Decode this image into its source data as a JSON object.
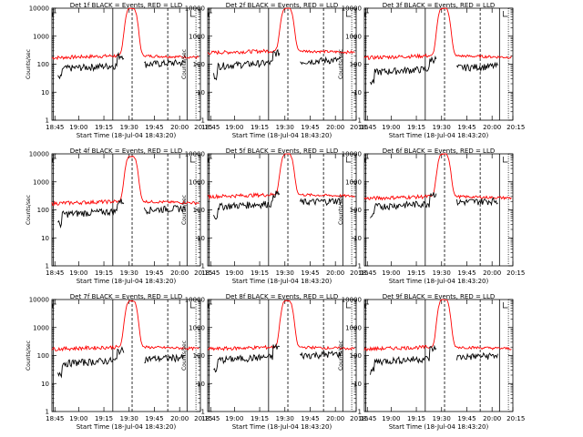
{
  "chart_data": [
    {
      "type": "line",
      "title": "Det 1f BLACK = Events, RED = LLD",
      "xlabel": "Start Time (18-Jul-04 18:43:20)",
      "ylabel": "Counts/sec",
      "yscale": "log",
      "ylim": [
        1,
        10000
      ],
      "xticks": [
        "18:45",
        "19:00",
        "19:15",
        "19:30",
        "19:45",
        "20:00",
        "20:15"
      ],
      "yticks": [
        "1",
        "10",
        "100",
        "1000",
        "10000"
      ],
      "peak": 10000,
      "red_base": 200,
      "black_base": 80,
      "series": [
        {
          "name": "BLACK = Events",
          "color": "#000000"
        },
        {
          "name": "RED = LLD",
          "color": "#ff0000"
        }
      ]
    },
    {
      "type": "line",
      "title": "Det 2f BLACK = Events, RED = LLD",
      "xlabel": "Start Time (18-Jul-04 18:43:20)",
      "ylabel": "Counts/sec",
      "yscale": "log",
      "ylim": [
        1,
        10000
      ],
      "xticks": [
        "18:45",
        "19:00",
        "19:15",
        "19:30",
        "19:45",
        "20:00",
        "20:15"
      ],
      "yticks": [
        "1",
        "10",
        "100",
        "1000",
        "10000"
      ],
      "peak": 10000,
      "red_base": 300,
      "black_base": 100,
      "series": [
        {
          "name": "BLACK = Events",
          "color": "#000000"
        },
        {
          "name": "RED = LLD",
          "color": "#ff0000"
        }
      ]
    },
    {
      "type": "line",
      "title": "Det 3f BLACK = Events, RED = LLD",
      "xlabel": "Start Time (18-Jul-04 18:43:20)",
      "ylabel": "Counts/sec",
      "yscale": "log",
      "ylim": [
        1,
        10000
      ],
      "xticks": [
        "18:45",
        "19:00",
        "19:15",
        "19:30",
        "19:45",
        "20:00",
        "20:15"
      ],
      "yticks": [
        "1",
        "10",
        "100",
        "1000",
        "10000"
      ],
      "peak": 10000,
      "red_base": 200,
      "black_base": 60,
      "series": [
        {
          "name": "BLACK = Events",
          "color": "#000000"
        },
        {
          "name": "RED = LLD",
          "color": "#ff0000"
        }
      ]
    },
    {
      "type": "line",
      "title": "Det 4f BLACK = Events, RED = LLD",
      "xlabel": "Start Time (18-Jul-04 18:43:20)",
      "ylabel": "Counts/sec",
      "yscale": "log",
      "ylim": [
        1,
        10000
      ],
      "xticks": [
        "18:45",
        "19:00",
        "19:15",
        "19:30",
        "19:45",
        "20:00",
        "20:15"
      ],
      "yticks": [
        "1",
        "10",
        "100",
        "1000",
        "10000"
      ],
      "peak": 8000,
      "red_base": 200,
      "black_base": 80,
      "series": [
        {
          "name": "BLACK = Events",
          "color": "#000000"
        },
        {
          "name": "RED = LLD",
          "color": "#ff0000"
        }
      ]
    },
    {
      "type": "line",
      "title": "Det 5f BLACK = Events, RED = LLD",
      "xlabel": "Start Time (18-Jul-04 18:43:20)",
      "ylabel": "Counts/sec",
      "yscale": "log",
      "ylim": [
        1,
        10000
      ],
      "xticks": [
        "18:45",
        "19:00",
        "19:15",
        "19:30",
        "19:45",
        "20:00",
        "20:15"
      ],
      "yticks": [
        "1",
        "10",
        "100",
        "1000",
        "10000"
      ],
      "peak": 10000,
      "red_base": 350,
      "black_base": 150,
      "series": [
        {
          "name": "BLACK = Events",
          "color": "#000000"
        },
        {
          "name": "RED = LLD",
          "color": "#ff0000"
        }
      ]
    },
    {
      "type": "line",
      "title": "Det 6f BLACK = Events, RED = LLD",
      "xlabel": "Start Time (18-Jul-04 18:43:20)",
      "ylabel": "Counts/sec",
      "yscale": "log",
      "ylim": [
        1,
        10000
      ],
      "xticks": [
        "18:45",
        "19:00",
        "19:15",
        "19:30",
        "19:45",
        "20:00",
        "20:15"
      ],
      "yticks": [
        "1",
        "10",
        "100",
        "1000",
        "10000"
      ],
      "peak": 10000,
      "red_base": 300,
      "black_base": 150,
      "series": [
        {
          "name": "BLACK = Events",
          "color": "#000000"
        },
        {
          "name": "RED = LLD",
          "color": "#ff0000"
        }
      ]
    },
    {
      "type": "line",
      "title": "Det 7f BLACK = Events, RED = LLD",
      "xlabel": "Start Time (18-Jul-04 18:43:20)",
      "ylabel": "Counts/sec",
      "yscale": "log",
      "ylim": [
        1,
        10000
      ],
      "xticks": [
        "18:45",
        "19:00",
        "19:15",
        "19:30",
        "19:45",
        "20:00",
        "20:15"
      ],
      "yticks": [
        "1",
        "10",
        "100",
        "1000",
        "10000"
      ],
      "peak": 9000,
      "red_base": 200,
      "black_base": 60,
      "series": [
        {
          "name": "BLACK = Events",
          "color": "#000000"
        },
        {
          "name": "RED = LLD",
          "color": "#ff0000"
        }
      ]
    },
    {
      "type": "line",
      "title": "Det 8f BLACK = Events, RED = LLD",
      "xlabel": "Start Time (18-Jul-04 18:43:20)",
      "ylabel": "Counts/sec",
      "yscale": "log",
      "ylim": [
        1,
        10000
      ],
      "xticks": [
        "18:45",
        "19:00",
        "19:15",
        "19:30",
        "19:45",
        "20:00",
        "20:15"
      ],
      "yticks": [
        "1",
        "10",
        "100",
        "1000",
        "10000"
      ],
      "peak": 9000,
      "red_base": 200,
      "black_base": 80,
      "series": [
        {
          "name": "BLACK = Events",
          "color": "#000000"
        },
        {
          "name": "RED = LLD",
          "color": "#ff0000"
        }
      ]
    },
    {
      "type": "line",
      "title": "Det 9f BLACK = Events, RED = LLD",
      "xlabel": "Start Time (18-Jul-04 18:43:20)",
      "ylabel": "Counts/sec",
      "yscale": "log",
      "ylim": [
        1,
        10000
      ],
      "xticks": [
        "18:45",
        "19:00",
        "19:15",
        "19:30",
        "19:45",
        "20:00",
        "20:15"
      ],
      "yticks": [
        "1",
        "10",
        "100",
        "1000",
        "10000"
      ],
      "peak": 10000,
      "red_base": 200,
      "black_base": 70,
      "series": [
        {
          "name": "BLACK = Events",
          "color": "#000000"
        },
        {
          "name": "RED = LLD",
          "color": "#ff0000"
        }
      ]
    }
  ]
}
